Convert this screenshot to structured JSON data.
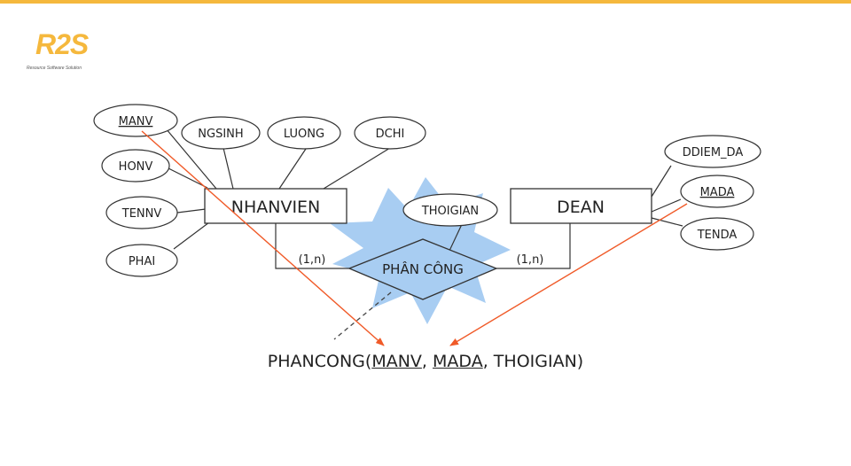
{
  "brand": {
    "logo_text": "R2S",
    "tagline": "Resource Software Solution",
    "accent_color": "#f5b83d"
  },
  "diagram": {
    "entities": {
      "nhanvien": "NHANVIEN",
      "dean": "DEAN"
    },
    "relationship": {
      "label": "PHÂN CÔNG",
      "attribute": "THOIGIAN",
      "left_cardinality": "(1,n)",
      "right_cardinality": "(1,n)"
    },
    "nhanvien_attributes": {
      "manv": "MANV",
      "honv": "HONV",
      "tennv": "TENNV",
      "phai": "PHAI",
      "ngsinh": "NGSINH",
      "luong": "LUONG",
      "dchi": "DCHI"
    },
    "dean_attributes": {
      "ddiem_da": "DDIEM_DA",
      "mada": "MADA",
      "tenda": "TENDA"
    },
    "highlight_color": "#a8cdf2",
    "arrow_color": "#f05a28"
  },
  "schema": {
    "table": "PHANCONG(",
    "key1": "MANV",
    "sep1": ", ",
    "key2": "MADA",
    "sep2": ", ",
    "attr": "THOIGIAN",
    "close": ")"
  }
}
